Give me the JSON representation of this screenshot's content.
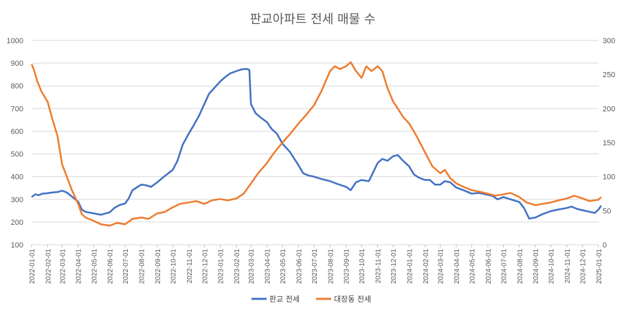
{
  "chart_data": {
    "type": "line",
    "title": "판교아파트 전세 매물 수",
    "y_left": {
      "min": 100,
      "max": 1000,
      "step": 100
    },
    "y_right": {
      "min": 0,
      "max": 300,
      "step": 50
    },
    "x_ticks": [
      "2022-01-01",
      "2022-02-01",
      "2022-03-01",
      "2022-04-01",
      "2022-05-01",
      "2022-06-01",
      "2022-07-01",
      "2022-08-01",
      "2022-09-01",
      "2022-10-01",
      "2022-11-01",
      "2022-12-01",
      "2023-01-01",
      "2023-02-01",
      "2023-03-01",
      "2023-04-01",
      "2023-05-01",
      "2023-06-01",
      "2023-07-01",
      "2023-08-01",
      "2023-09-01",
      "2023-10-01",
      "2023-11-01",
      "2023-12-01",
      "2024-01-01",
      "2024-02-01",
      "2024-03-01",
      "2024-04-01",
      "2024-05-01",
      "2024-06-01",
      "2024-07-01",
      "2024-08-01",
      "2024-09-01",
      "2024-10-01",
      "2024-11-01",
      "2024-12-01",
      "2025-01-01"
    ],
    "legend_position": "bottom",
    "series": [
      {
        "name": "판교 전세",
        "axis": "left",
        "color": "#4472C4",
        "points": [
          [
            "2022-01-01",
            310
          ],
          [
            "2022-01-08",
            322
          ],
          [
            "2022-01-15",
            318
          ],
          [
            "2022-01-22",
            325
          ],
          [
            "2022-02-01",
            327
          ],
          [
            "2022-02-10",
            330
          ],
          [
            "2022-02-20",
            332
          ],
          [
            "2022-03-01",
            338
          ],
          [
            "2022-03-10",
            330
          ],
          [
            "2022-03-20",
            312
          ],
          [
            "2022-04-01",
            290
          ],
          [
            "2022-04-08",
            255
          ],
          [
            "2022-04-15",
            245
          ],
          [
            "2022-05-01",
            238
          ],
          [
            "2022-05-15",
            232
          ],
          [
            "2022-06-01",
            243
          ],
          [
            "2022-06-10",
            262
          ],
          [
            "2022-06-20",
            275
          ],
          [
            "2022-07-01",
            282
          ],
          [
            "2022-07-08",
            305
          ],
          [
            "2022-07-15",
            340
          ],
          [
            "2022-07-25",
            355
          ],
          [
            "2022-08-01",
            365
          ],
          [
            "2022-08-10",
            362
          ],
          [
            "2022-08-20",
            355
          ],
          [
            "2022-09-01",
            375
          ],
          [
            "2022-09-15",
            402
          ],
          [
            "2022-10-01",
            430
          ],
          [
            "2022-10-10",
            470
          ],
          [
            "2022-10-20",
            540
          ],
          [
            "2022-11-01",
            590
          ],
          [
            "2022-11-10",
            625
          ],
          [
            "2022-11-20",
            665
          ],
          [
            "2022-12-01",
            720
          ],
          [
            "2022-12-10",
            765
          ],
          [
            "2022-12-20",
            790
          ],
          [
            "2023-01-01",
            820
          ],
          [
            "2023-01-10",
            838
          ],
          [
            "2023-01-20",
            855
          ],
          [
            "2023-02-01",
            865
          ],
          [
            "2023-02-10",
            872
          ],
          [
            "2023-02-20",
            875
          ],
          [
            "2023-02-26",
            870
          ],
          [
            "2023-03-01",
            720
          ],
          [
            "2023-03-10",
            680
          ],
          [
            "2023-03-20",
            660
          ],
          [
            "2023-04-01",
            640
          ],
          [
            "2023-04-10",
            610
          ],
          [
            "2023-04-20",
            590
          ],
          [
            "2023-05-01",
            545
          ],
          [
            "2023-05-15",
            510
          ],
          [
            "2023-06-01",
            450
          ],
          [
            "2023-06-10",
            415
          ],
          [
            "2023-06-20",
            405
          ],
          [
            "2023-07-01",
            400
          ],
          [
            "2023-07-15",
            390
          ],
          [
            "2023-08-01",
            380
          ],
          [
            "2023-08-15",
            368
          ],
          [
            "2023-09-01",
            355
          ],
          [
            "2023-09-10",
            340
          ],
          [
            "2023-09-20",
            375
          ],
          [
            "2023-10-01",
            385
          ],
          [
            "2023-10-15",
            380
          ],
          [
            "2023-11-01",
            460
          ],
          [
            "2023-11-10",
            478
          ],
          [
            "2023-11-20",
            470
          ],
          [
            "2023-12-01",
            490
          ],
          [
            "2023-12-10",
            495
          ],
          [
            "2023-12-20",
            470
          ],
          [
            "2024-01-01",
            445
          ],
          [
            "2024-01-10",
            410
          ],
          [
            "2024-01-20",
            395
          ],
          [
            "2024-02-01",
            385
          ],
          [
            "2024-02-10",
            385
          ],
          [
            "2024-02-20",
            365
          ],
          [
            "2024-03-01",
            365
          ],
          [
            "2024-03-10",
            380
          ],
          [
            "2024-03-20",
            375
          ],
          [
            "2024-04-01",
            352
          ],
          [
            "2024-04-15",
            340
          ],
          [
            "2024-05-01",
            325
          ],
          [
            "2024-05-15",
            328
          ],
          [
            "2024-06-01",
            320
          ],
          [
            "2024-06-10",
            315
          ],
          [
            "2024-06-20",
            300
          ],
          [
            "2024-07-01",
            310
          ],
          [
            "2024-07-15",
            300
          ],
          [
            "2024-08-01",
            288
          ],
          [
            "2024-08-10",
            262
          ],
          [
            "2024-08-20",
            215
          ],
          [
            "2024-09-01",
            220
          ],
          [
            "2024-09-15",
            235
          ],
          [
            "2024-10-01",
            248
          ],
          [
            "2024-10-15",
            255
          ],
          [
            "2024-11-01",
            262
          ],
          [
            "2024-11-10",
            268
          ],
          [
            "2024-11-20",
            258
          ],
          [
            "2024-12-01",
            252
          ],
          [
            "2024-12-15",
            245
          ],
          [
            "2024-12-25",
            240
          ],
          [
            "2025-01-01",
            255
          ],
          [
            "2025-01-06",
            272
          ]
        ]
      },
      {
        "name": "대장동 전세",
        "axis": "right",
        "color": "#ED7D31",
        "points": [
          [
            "2022-01-01",
            265
          ],
          [
            "2022-01-05",
            258
          ],
          [
            "2022-01-12",
            240
          ],
          [
            "2022-01-20",
            225
          ],
          [
            "2022-02-01",
            210
          ],
          [
            "2022-02-10",
            185
          ],
          [
            "2022-02-20",
            160
          ],
          [
            "2022-03-01",
            118
          ],
          [
            "2022-03-10",
            100
          ],
          [
            "2022-03-20",
            80
          ],
          [
            "2022-04-01",
            60
          ],
          [
            "2022-04-08",
            45
          ],
          [
            "2022-04-15",
            40
          ],
          [
            "2022-05-01",
            35
          ],
          [
            "2022-05-15",
            30
          ],
          [
            "2022-06-01",
            28
          ],
          [
            "2022-06-15",
            32
          ],
          [
            "2022-07-01",
            30
          ],
          [
            "2022-07-15",
            38
          ],
          [
            "2022-08-01",
            40
          ],
          [
            "2022-08-15",
            38
          ],
          [
            "2022-09-01",
            46
          ],
          [
            "2022-09-15",
            48
          ],
          [
            "2022-10-01",
            55
          ],
          [
            "2022-10-15",
            60
          ],
          [
            "2022-11-01",
            62
          ],
          [
            "2022-11-15",
            64
          ],
          [
            "2022-12-01",
            60
          ],
          [
            "2022-12-15",
            65
          ],
          [
            "2023-01-01",
            67
          ],
          [
            "2023-01-15",
            65
          ],
          [
            "2023-02-01",
            68
          ],
          [
            "2023-02-15",
            75
          ],
          [
            "2023-03-01",
            90
          ],
          [
            "2023-03-15",
            105
          ],
          [
            "2023-04-01",
            120
          ],
          [
            "2023-04-10",
            130
          ],
          [
            "2023-04-20",
            140
          ],
          [
            "2023-05-01",
            150
          ],
          [
            "2023-05-15",
            162
          ],
          [
            "2023-06-01",
            178
          ],
          [
            "2023-06-15",
            190
          ],
          [
            "2023-07-01",
            205
          ],
          [
            "2023-07-15",
            225
          ],
          [
            "2023-08-01",
            255
          ],
          [
            "2023-08-10",
            262
          ],
          [
            "2023-08-20",
            258
          ],
          [
            "2023-09-01",
            262
          ],
          [
            "2023-09-10",
            268
          ],
          [
            "2023-09-20",
            255
          ],
          [
            "2023-10-01",
            245
          ],
          [
            "2023-10-10",
            262
          ],
          [
            "2023-10-20",
            255
          ],
          [
            "2023-11-01",
            262
          ],
          [
            "2023-11-10",
            255
          ],
          [
            "2023-11-20",
            230
          ],
          [
            "2023-12-01",
            210
          ],
          [
            "2023-12-10",
            200
          ],
          [
            "2023-12-20",
            188
          ],
          [
            "2024-01-01",
            178
          ],
          [
            "2024-01-15",
            160
          ],
          [
            "2024-02-01",
            135
          ],
          [
            "2024-02-15",
            115
          ],
          [
            "2024-03-01",
            105
          ],
          [
            "2024-03-10",
            110
          ],
          [
            "2024-03-20",
            98
          ],
          [
            "2024-04-01",
            90
          ],
          [
            "2024-04-15",
            85
          ],
          [
            "2024-05-01",
            80
          ],
          [
            "2024-05-15",
            78
          ],
          [
            "2024-06-01",
            75
          ],
          [
            "2024-06-15",
            72
          ],
          [
            "2024-07-01",
            74
          ],
          [
            "2024-07-15",
            76
          ],
          [
            "2024-08-01",
            70
          ],
          [
            "2024-08-15",
            62
          ],
          [
            "2024-09-01",
            58
          ],
          [
            "2024-09-15",
            60
          ],
          [
            "2024-10-01",
            62
          ],
          [
            "2024-10-15",
            65
          ],
          [
            "2024-11-01",
            68
          ],
          [
            "2024-11-15",
            72
          ],
          [
            "2024-12-01",
            68
          ],
          [
            "2024-12-15",
            64
          ],
          [
            "2025-01-01",
            66
          ],
          [
            "2025-01-06",
            70
          ]
        ]
      }
    ]
  }
}
